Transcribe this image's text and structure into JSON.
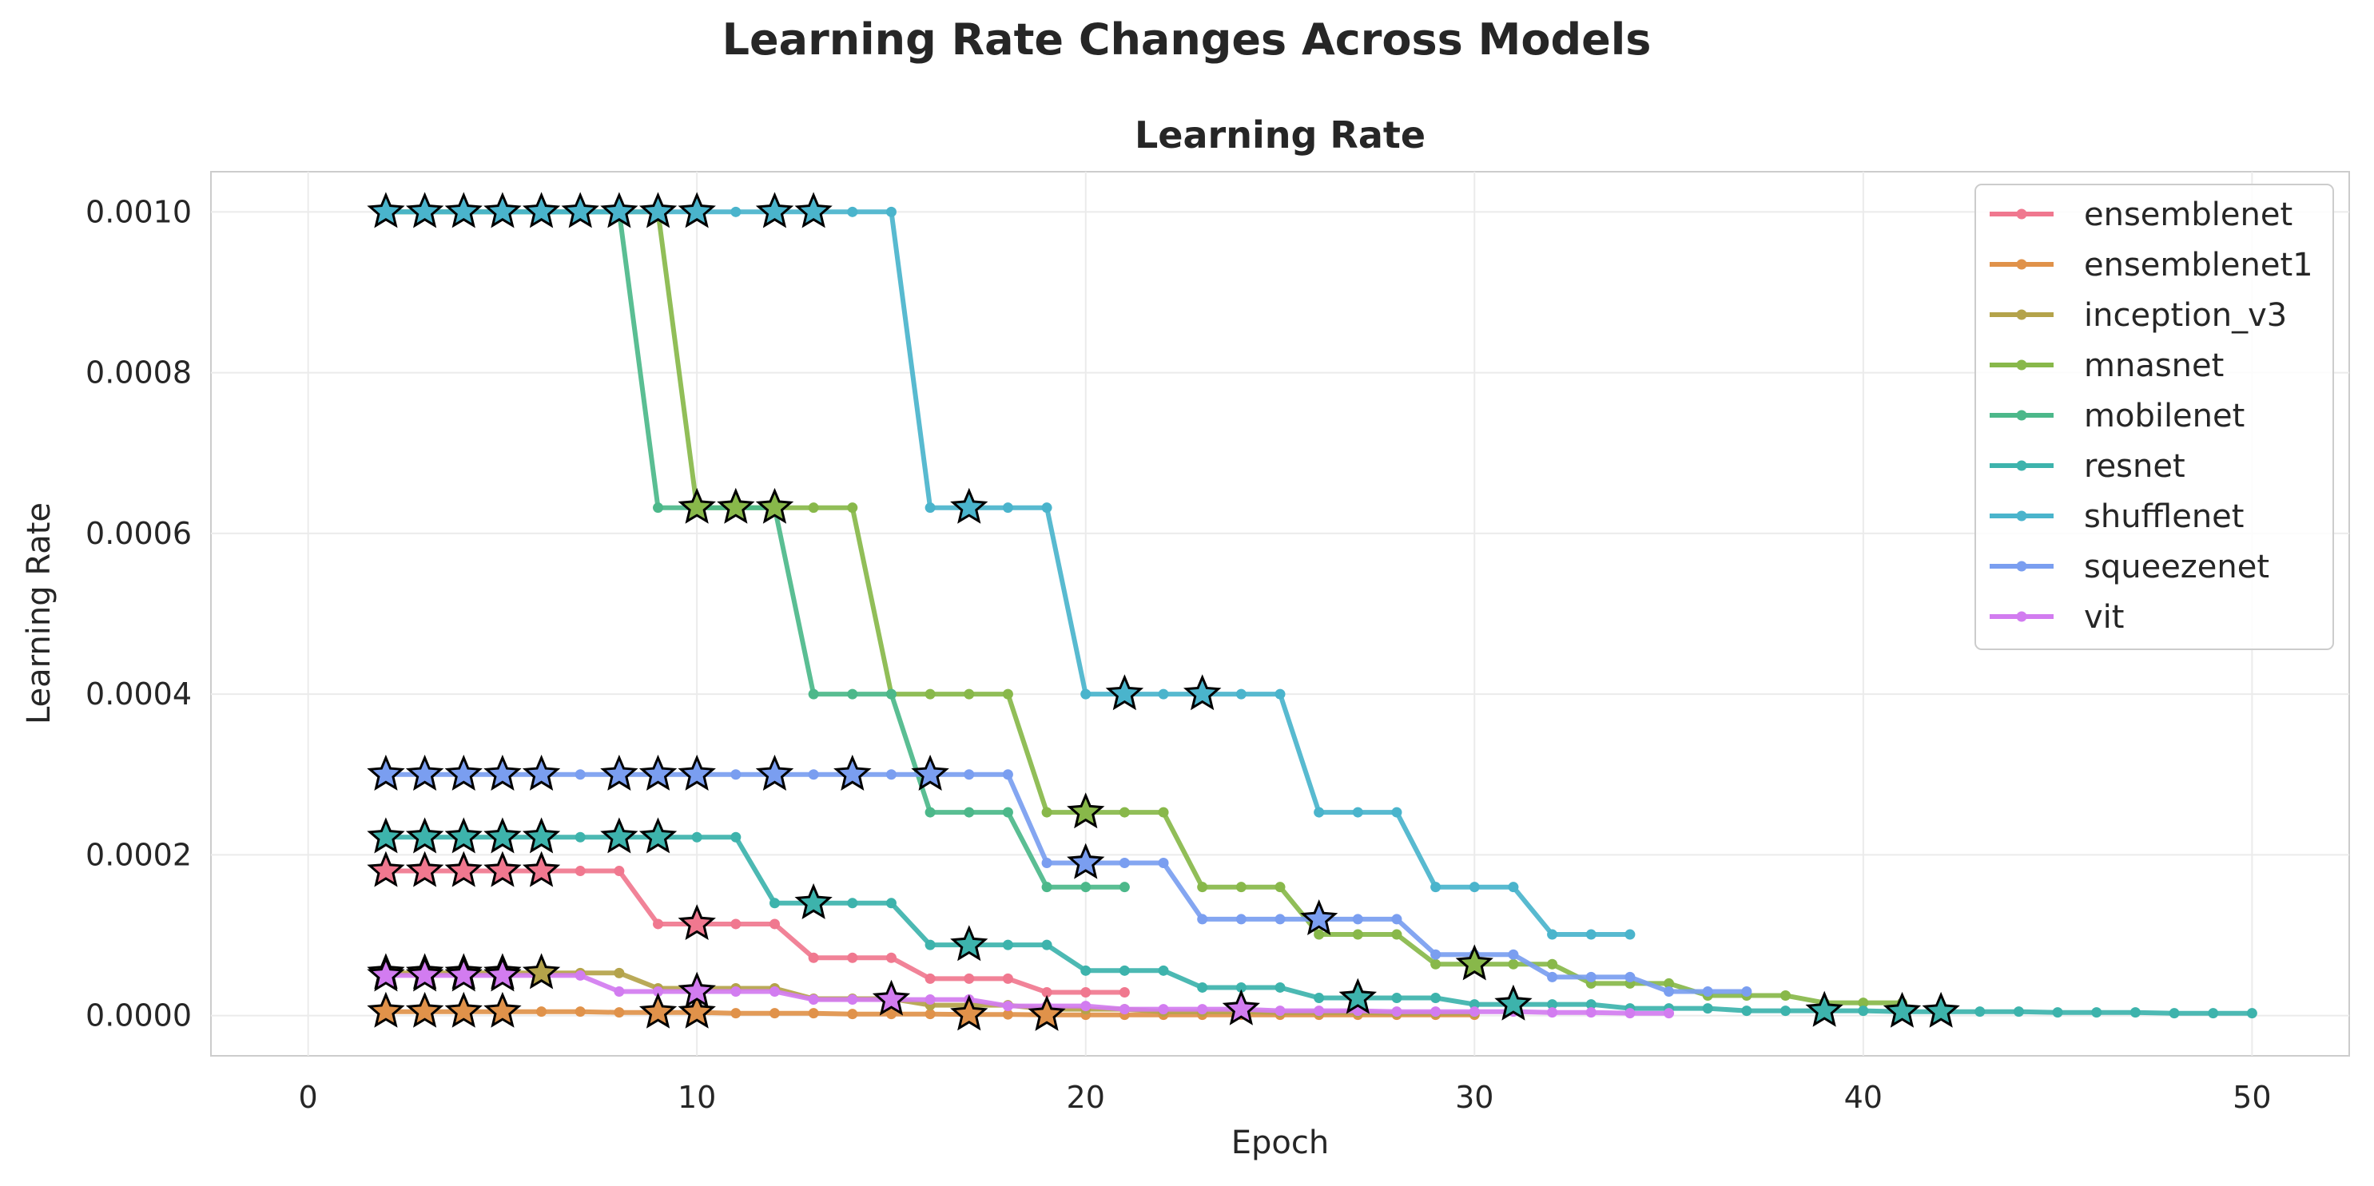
{
  "figure_title": "Learning Rate Changes Across Models",
  "chart_data": {
    "type": "line",
    "title": "Learning Rate",
    "xlabel": "Epoch",
    "ylabel": "Learning Rate",
    "xlim": [
      -2.5,
      52.5
    ],
    "ylim": [
      -5e-05,
      0.00105
    ],
    "x_ticks": [
      0,
      10,
      20,
      30,
      40,
      50
    ],
    "x_tick_labels": [
      "0",
      "10",
      "20",
      "30",
      "40",
      "50"
    ],
    "y_ticks": [
      0,
      0.0002,
      0.0004,
      0.0006,
      0.0008,
      0.001
    ],
    "y_tick_labels": [
      "0.0000",
      "0.0002",
      "0.0004",
      "0.0006",
      "0.0008",
      "0.0010"
    ],
    "grid": true,
    "legend_position": "top-right",
    "series": [
      {
        "name": "ensemblenet",
        "color": "#f0788f",
        "x": [
          2,
          3,
          4,
          5,
          6,
          7,
          8,
          9,
          10,
          11,
          12,
          13,
          14,
          15,
          16,
          17,
          18,
          19,
          20,
          21
        ],
        "y": [
          0.00018,
          0.00018,
          0.00018,
          0.00018,
          0.00018,
          0.00018,
          0.00018,
          0.000114,
          0.000114,
          0.000114,
          0.000114,
          7.2e-05,
          7.2e-05,
          7.2e-05,
          4.6e-05,
          4.6e-05,
          4.6e-05,
          2.9e-05,
          2.9e-05,
          2.9e-05
        ],
        "star_x": [
          2,
          3,
          4,
          5,
          6,
          10
        ]
      },
      {
        "name": "ensemblenet1",
        "color": "#e0924a",
        "x": [
          2,
          3,
          4,
          5,
          6,
          7,
          8,
          9,
          10,
          11,
          12,
          13,
          14,
          15,
          16,
          17,
          18,
          19,
          20,
          21,
          22,
          23,
          24,
          25,
          26,
          27,
          28,
          29,
          30
        ],
        "y": [
          5e-06,
          5e-06,
          5e-06,
          5e-06,
          5e-06,
          5e-06,
          4e-06,
          4e-06,
          4e-06,
          3e-06,
          3e-06,
          3e-06,
          2e-06,
          2e-06,
          2e-06,
          1.5e-06,
          1.5e-06,
          1e-06,
          1e-06,
          1e-06,
          1e-06,
          1e-06,
          1e-06,
          1e-06,
          1e-06,
          1e-06,
          1e-06,
          1e-06,
          1e-06
        ],
        "star_x": [
          2,
          3,
          4,
          5,
          9,
          10,
          17,
          19
        ]
      },
      {
        "name": "inception_v3",
        "color": "#b4a34a",
        "x": [
          2,
          3,
          4,
          5,
          6,
          7,
          8,
          9,
          10,
          11,
          12,
          13,
          14,
          15,
          16,
          17,
          18,
          19,
          20,
          21,
          22,
          23,
          24,
          25,
          26,
          27,
          28,
          29,
          30
        ],
        "y": [
          5.3e-05,
          5.3e-05,
          5.3e-05,
          5.3e-05,
          5.3e-05,
          5.3e-05,
          5.3e-05,
          3.4e-05,
          3.4e-05,
          3.4e-05,
          3.4e-05,
          2.1e-05,
          2.1e-05,
          2.1e-05,
          1.3e-05,
          1.3e-05,
          1.3e-05,
          8e-06,
          8e-06,
          8e-06,
          5e-06,
          5e-06,
          5e-06,
          4e-06,
          4e-06,
          4e-06,
          3e-06,
          3e-06,
          3e-06
        ],
        "star_x": [
          2,
          3,
          4,
          5,
          6
        ]
      },
      {
        "name": "mnasnet",
        "color": "#88b84a",
        "x": [
          2,
          3,
          4,
          5,
          6,
          7,
          8,
          9,
          10,
          11,
          12,
          13,
          14,
          15,
          16,
          17,
          18,
          19,
          20,
          21,
          22,
          23,
          24,
          25,
          26,
          27,
          28,
          29,
          30,
          31,
          32,
          33,
          34,
          35,
          36,
          37,
          38,
          39,
          40,
          41
        ],
        "y": [
          0.001,
          0.001,
          0.001,
          0.001,
          0.001,
          0.001,
          0.001,
          0.001,
          0.000632,
          0.000632,
          0.000632,
          0.000632,
          0.000632,
          0.0004,
          0.0004,
          0.0004,
          0.0004,
          0.000253,
          0.000253,
          0.000253,
          0.000253,
          0.00016,
          0.00016,
          0.00016,
          0.000101,
          0.000101,
          0.000101,
          6.4e-05,
          6.4e-05,
          6.4e-05,
          6.4e-05,
          4e-05,
          4e-05,
          4e-05,
          2.5e-05,
          2.5e-05,
          2.5e-05,
          1.6e-05,
          1.6e-05,
          1.6e-05
        ],
        "star_x": [
          10,
          11,
          12,
          20,
          30
        ]
      },
      {
        "name": "mobilenet",
        "color": "#4cb88a",
        "x": [
          2,
          3,
          4,
          5,
          6,
          7,
          8,
          9,
          10,
          11,
          12,
          13,
          14,
          15,
          16,
          17,
          18,
          19,
          20,
          21
        ],
        "y": [
          0.001,
          0.001,
          0.001,
          0.001,
          0.001,
          0.001,
          0.001,
          0.000632,
          0.000632,
          0.000632,
          0.000632,
          0.0004,
          0.0004,
          0.0004,
          0.000253,
          0.000253,
          0.000253,
          0.00016,
          0.00016,
          0.00016
        ],
        "star_x": []
      },
      {
        "name": "resnet",
        "color": "#3db3ac",
        "x": [
          2,
          3,
          4,
          5,
          6,
          7,
          8,
          9,
          10,
          11,
          12,
          13,
          14,
          15,
          16,
          17,
          18,
          19,
          20,
          21,
          22,
          23,
          24,
          25,
          26,
          27,
          28,
          29,
          30,
          31,
          32,
          33,
          34,
          35,
          36,
          37,
          38,
          39,
          40,
          41,
          42,
          43,
          44,
          45,
          46,
          47,
          48,
          49,
          50
        ],
        "y": [
          0.000222,
          0.000222,
          0.000222,
          0.000222,
          0.000222,
          0.000222,
          0.000222,
          0.000222,
          0.000222,
          0.000222,
          0.00014,
          0.00014,
          0.00014,
          0.00014,
          8.8e-05,
          8.8e-05,
          8.8e-05,
          8.8e-05,
          5.6e-05,
          5.6e-05,
          5.6e-05,
          3.5e-05,
          3.5e-05,
          3.5e-05,
          2.2e-05,
          2.2e-05,
          2.2e-05,
          2.2e-05,
          1.4e-05,
          1.4e-05,
          1.4e-05,
          1.4e-05,
          9e-06,
          9e-06,
          9e-06,
          6e-06,
          6e-06,
          6e-06,
          6e-06,
          5e-06,
          5e-06,
          5e-06,
          5e-06,
          4e-06,
          4e-06,
          4e-06,
          3e-06,
          3e-06,
          3e-06
        ],
        "star_x": [
          2,
          3,
          4,
          5,
          6,
          8,
          9,
          13,
          17,
          27,
          31,
          39,
          41,
          42
        ]
      },
      {
        "name": "shufflenet",
        "color": "#4ab4cc",
        "x": [
          2,
          3,
          4,
          5,
          6,
          7,
          8,
          9,
          10,
          11,
          12,
          13,
          14,
          15,
          16,
          17,
          18,
          19,
          20,
          21,
          22,
          23,
          24,
          25,
          26,
          27,
          28,
          29,
          30,
          31,
          32,
          33,
          34
        ],
        "y": [
          0.001,
          0.001,
          0.001,
          0.001,
          0.001,
          0.001,
          0.001,
          0.001,
          0.001,
          0.001,
          0.001,
          0.001,
          0.001,
          0.001,
          0.000632,
          0.000632,
          0.000632,
          0.000632,
          0.0004,
          0.0004,
          0.0004,
          0.0004,
          0.0004,
          0.0004,
          0.000253,
          0.000253,
          0.000253,
          0.00016,
          0.00016,
          0.00016,
          0.000101,
          0.000101,
          0.000101
        ],
        "star_x": [
          2,
          3,
          4,
          5,
          6,
          7,
          8,
          9,
          10,
          12,
          13,
          17,
          21,
          23
        ]
      },
      {
        "name": "squeezenet",
        "color": "#7a9ef0",
        "x": [
          2,
          3,
          4,
          5,
          6,
          7,
          8,
          9,
          10,
          11,
          12,
          13,
          14,
          15,
          16,
          17,
          18,
          19,
          20,
          21,
          22,
          23,
          24,
          25,
          26,
          27,
          28,
          29,
          30,
          31,
          32,
          33,
          34,
          35,
          36,
          37
        ],
        "y": [
          0.0003,
          0.0003,
          0.0003,
          0.0003,
          0.0003,
          0.0003,
          0.0003,
          0.0003,
          0.0003,
          0.0003,
          0.0003,
          0.0003,
          0.0003,
          0.0003,
          0.0003,
          0.0003,
          0.0003,
          0.00019,
          0.00019,
          0.00019,
          0.00019,
          0.00012,
          0.00012,
          0.00012,
          0.00012,
          0.00012,
          0.00012,
          7.6e-05,
          7.6e-05,
          7.6e-05,
          4.8e-05,
          4.8e-05,
          4.8e-05,
          3e-05,
          3e-05,
          3e-05
        ],
        "star_x": [
          2,
          3,
          4,
          5,
          6,
          8,
          9,
          10,
          12,
          14,
          16,
          20,
          26
        ]
      },
      {
        "name": "vit",
        "color": "#d27cf0",
        "x": [
          2,
          3,
          4,
          5,
          6,
          7,
          8,
          9,
          10,
          11,
          12,
          13,
          14,
          15,
          16,
          17,
          18,
          19,
          20,
          21,
          22,
          23,
          24,
          25,
          26,
          27,
          28,
          29,
          30,
          31,
          32,
          33,
          34,
          35
        ],
        "y": [
          5e-05,
          5e-05,
          5e-05,
          5e-05,
          5e-05,
          5e-05,
          3e-05,
          3e-05,
          3e-05,
          3e-05,
          3e-05,
          2e-05,
          2e-05,
          2e-05,
          2e-05,
          2e-05,
          1.2e-05,
          1.2e-05,
          1.2e-05,
          8e-06,
          8e-06,
          8e-06,
          8e-06,
          6e-06,
          6e-06,
          6e-06,
          5e-06,
          5e-06,
          5e-06,
          5e-06,
          4e-06,
          4e-06,
          3e-06,
          3e-06
        ],
        "star_x": [
          2,
          3,
          4,
          5,
          10,
          15,
          24
        ]
      }
    ]
  }
}
